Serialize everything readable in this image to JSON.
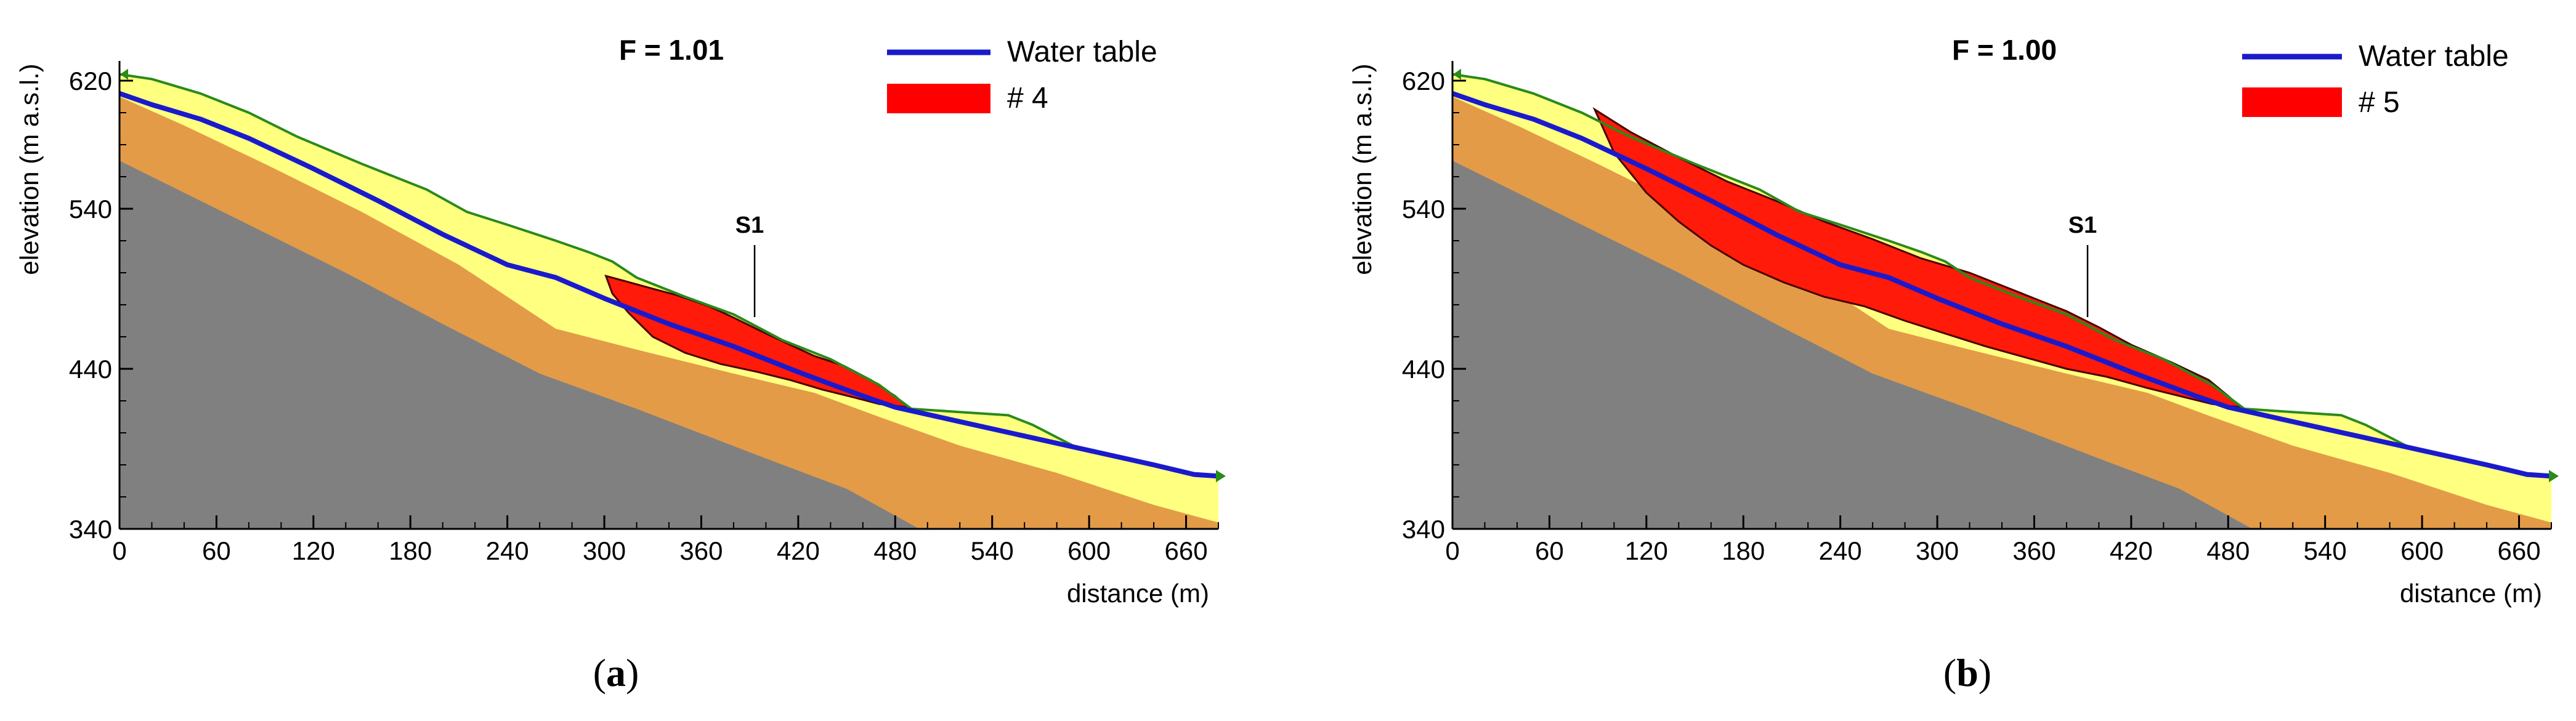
{
  "chart_data": [
    {
      "type": "area",
      "panel_caption": "(a)",
      "caption_parts": {
        "open": "(",
        "letter": "a",
        "close": ")"
      },
      "factor_of_safety": "F = 1.01",
      "xlabel": "distance (m)",
      "ylabel": "elevation (m a.s.l.)",
      "xlim": [
        0,
        680
      ],
      "ylim": [
        340,
        630
      ],
      "x_ticks": [
        0,
        60,
        120,
        180,
        240,
        300,
        360,
        420,
        480,
        540,
        600,
        660
      ],
      "y_ticks": [
        340,
        440,
        540,
        620
      ],
      "section_label": "S1",
      "section_x": 393,
      "legend": [
        {
          "name": "Water table",
          "kind": "line",
          "color": "#1a1acd"
        },
        {
          "name": "# 4",
          "kind": "patch",
          "color": "#ff0000"
        }
      ],
      "layers": {
        "ground_surface": [
          [
            0,
            624
          ],
          [
            20,
            621
          ],
          [
            50,
            612
          ],
          [
            80,
            600
          ],
          [
            110,
            585
          ],
          [
            150,
            568
          ],
          [
            190,
            552
          ],
          [
            215,
            538
          ],
          [
            240,
            530
          ],
          [
            270,
            520
          ],
          [
            290,
            513
          ],
          [
            305,
            507
          ],
          [
            320,
            497
          ],
          [
            350,
            485
          ],
          [
            380,
            474
          ],
          [
            410,
            458
          ],
          [
            440,
            446
          ],
          [
            470,
            430
          ],
          [
            490,
            415
          ],
          [
            520,
            413
          ],
          [
            550,
            411
          ],
          [
            565,
            405
          ],
          [
            590,
            392
          ],
          [
            620,
            384
          ],
          [
            650,
            377
          ],
          [
            670,
            373
          ],
          [
            680,
            373
          ]
        ],
        "orange_top": [
          [
            0,
            610
          ],
          [
            40,
            592
          ],
          [
            90,
            568
          ],
          [
            150,
            538
          ],
          [
            210,
            505
          ],
          [
            270,
            465
          ],
          [
            320,
            452
          ],
          [
            380,
            437
          ],
          [
            430,
            425
          ],
          [
            470,
            410
          ],
          [
            520,
            392
          ],
          [
            580,
            375
          ],
          [
            640,
            355
          ],
          [
            680,
            344
          ]
        ],
        "gray_top": [
          [
            0,
            570
          ],
          [
            60,
            540
          ],
          [
            140,
            500
          ],
          [
            200,
            468
          ],
          [
            260,
            437
          ],
          [
            320,
            415
          ],
          [
            400,
            384
          ],
          [
            450,
            365
          ],
          [
            495,
            340
          ]
        ],
        "water_table": [
          [
            0,
            612
          ],
          [
            20,
            605
          ],
          [
            50,
            596
          ],
          [
            80,
            584
          ],
          [
            120,
            565
          ],
          [
            160,
            545
          ],
          [
            200,
            524
          ],
          [
            240,
            505
          ],
          [
            270,
            497
          ],
          [
            300,
            484
          ],
          [
            340,
            468
          ],
          [
            380,
            454
          ],
          [
            420,
            438
          ],
          [
            460,
            423
          ],
          [
            480,
            416
          ],
          [
            520,
            407
          ],
          [
            560,
            398
          ],
          [
            600,
            389
          ],
          [
            640,
            380
          ],
          [
            665,
            374
          ],
          [
            680,
            373
          ]
        ],
        "slip_mass": [
          [
            301,
            498
          ],
          [
            312,
            495
          ],
          [
            330,
            490
          ],
          [
            345,
            486
          ],
          [
            365,
            479
          ],
          [
            380,
            472
          ],
          [
            398,
            463
          ],
          [
            415,
            455
          ],
          [
            430,
            448
          ],
          [
            448,
            442
          ],
          [
            465,
            433
          ],
          [
            480,
            423
          ],
          [
            488,
            416
          ],
          [
            470,
            418
          ],
          [
            455,
            422
          ],
          [
            435,
            427
          ],
          [
            415,
            433
          ],
          [
            395,
            438
          ],
          [
            372,
            443
          ],
          [
            350,
            450
          ],
          [
            330,
            460
          ],
          [
            315,
            475
          ],
          [
            305,
            487
          ],
          [
            301,
            498
          ]
        ]
      }
    },
    {
      "type": "area",
      "panel_caption": "(b)",
      "caption_parts": {
        "open": "(",
        "letter": "b",
        "close": ")"
      },
      "factor_of_safety": "F = 1.00",
      "xlabel": "distance (m)",
      "ylabel": "elevation (m a.s.l.)",
      "xlim": [
        0,
        680
      ],
      "ylim": [
        340,
        630
      ],
      "x_ticks": [
        0,
        60,
        120,
        180,
        240,
        300,
        360,
        420,
        480,
        540,
        600,
        660
      ],
      "y_ticks": [
        340,
        440,
        540,
        620
      ],
      "section_label": "S1",
      "section_x": 393,
      "legend": [
        {
          "name": "Water table",
          "kind": "line",
          "color": "#1a1acd"
        },
        {
          "name": "# 5",
          "kind": "patch",
          "color": "#ff0000"
        }
      ],
      "layers": {
        "ground_surface": [
          [
            0,
            624
          ],
          [
            20,
            621
          ],
          [
            50,
            612
          ],
          [
            80,
            600
          ],
          [
            110,
            585
          ],
          [
            150,
            568
          ],
          [
            190,
            552
          ],
          [
            215,
            538
          ],
          [
            240,
            530
          ],
          [
            270,
            520
          ],
          [
            290,
            513
          ],
          [
            305,
            507
          ],
          [
            320,
            497
          ],
          [
            350,
            485
          ],
          [
            380,
            474
          ],
          [
            410,
            458
          ],
          [
            440,
            446
          ],
          [
            470,
            430
          ],
          [
            490,
            415
          ],
          [
            520,
            413
          ],
          [
            550,
            411
          ],
          [
            565,
            405
          ],
          [
            590,
            392
          ],
          [
            620,
            384
          ],
          [
            650,
            377
          ],
          [
            670,
            373
          ],
          [
            680,
            373
          ]
        ],
        "orange_top": [
          [
            0,
            610
          ],
          [
            40,
            592
          ],
          [
            90,
            568
          ],
          [
            150,
            538
          ],
          [
            210,
            505
          ],
          [
            270,
            465
          ],
          [
            320,
            452
          ],
          [
            380,
            437
          ],
          [
            430,
            425
          ],
          [
            470,
            410
          ],
          [
            520,
            392
          ],
          [
            580,
            375
          ],
          [
            640,
            355
          ],
          [
            680,
            344
          ]
        ],
        "gray_top": [
          [
            0,
            570
          ],
          [
            60,
            540
          ],
          [
            140,
            500
          ],
          [
            200,
            468
          ],
          [
            260,
            437
          ],
          [
            320,
            415
          ],
          [
            400,
            384
          ],
          [
            450,
            365
          ],
          [
            495,
            340
          ]
        ],
        "water_table": [
          [
            0,
            612
          ],
          [
            20,
            605
          ],
          [
            50,
            596
          ],
          [
            80,
            584
          ],
          [
            120,
            565
          ],
          [
            160,
            545
          ],
          [
            200,
            524
          ],
          [
            240,
            505
          ],
          [
            270,
            497
          ],
          [
            300,
            484
          ],
          [
            340,
            468
          ],
          [
            380,
            454
          ],
          [
            420,
            438
          ],
          [
            460,
            423
          ],
          [
            480,
            416
          ],
          [
            520,
            407
          ],
          [
            560,
            398
          ],
          [
            600,
            389
          ],
          [
            640,
            380
          ],
          [
            665,
            374
          ],
          [
            680,
            373
          ]
        ],
        "slip_mass": [
          [
            88,
            602
          ],
          [
            110,
            588
          ],
          [
            140,
            572
          ],
          [
            170,
            557
          ],
          [
            200,
            545
          ],
          [
            230,
            532
          ],
          [
            260,
            521
          ],
          [
            290,
            509
          ],
          [
            320,
            500
          ],
          [
            350,
            488
          ],
          [
            380,
            476
          ],
          [
            400,
            466
          ],
          [
            420,
            455
          ],
          [
            445,
            444
          ],
          [
            468,
            433
          ],
          [
            480,
            423
          ],
          [
            488,
            416
          ],
          [
            470,
            418
          ],
          [
            450,
            423
          ],
          [
            430,
            428
          ],
          [
            405,
            435
          ],
          [
            380,
            440
          ],
          [
            355,
            447
          ],
          [
            330,
            454
          ],
          [
            305,
            462
          ],
          [
            280,
            470
          ],
          [
            255,
            479
          ],
          [
            230,
            485
          ],
          [
            205,
            494
          ],
          [
            180,
            505
          ],
          [
            160,
            517
          ],
          [
            140,
            532
          ],
          [
            120,
            550
          ],
          [
            100,
            575
          ],
          [
            88,
            602
          ]
        ]
      }
    }
  ]
}
